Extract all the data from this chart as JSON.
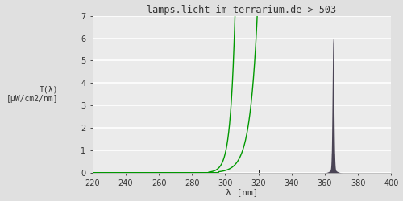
{
  "title": "lamps.licht-im-terrarium.de > 503",
  "title_fontsize": 8.5,
  "xlabel": "λ [nm]",
  "ylabel": "I(λ)\n[μW/cm2/nm]",
  "xlim": [
    220,
    400
  ],
  "ylim": [
    0.0,
    7.0
  ],
  "yticks": [
    0.0,
    1.0,
    2.0,
    3.0,
    4.0,
    5.0,
    6.0,
    7.0
  ],
  "xticks": [
    220,
    240,
    260,
    280,
    300,
    320,
    340,
    360,
    380,
    400
  ],
  "background_color": "#e0e0e0",
  "axes_background": "#ebebeb",
  "grid_color": "#ffffff",
  "green_color": "#009900",
  "dark_color": "#4a4455",
  "line_width": 1.0
}
